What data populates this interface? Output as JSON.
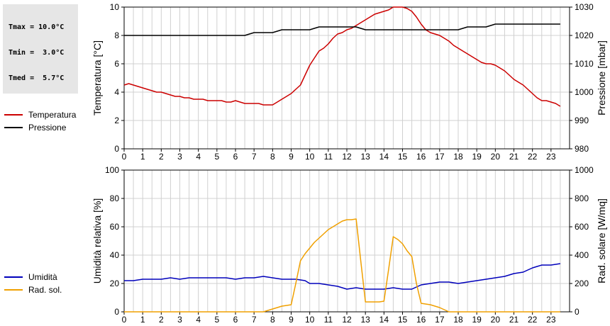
{
  "stats": {
    "tmax": "Tmax = 10.0°C",
    "tmin": "Tmin =  3.0°C",
    "tmed": "Tmed =  5.7°C"
  },
  "legend_top": [
    {
      "label": "Temperatura",
      "color": "#cc0000"
    },
    {
      "label": "Pressione",
      "color": "#000000"
    }
  ],
  "legend_bottom": [
    {
      "label": "Umidità",
      "color": "#0000bb"
    },
    {
      "label": "Rad. sol.",
      "color": "#f0a000"
    }
  ],
  "chart_data": [
    {
      "type": "line",
      "x": [
        0,
        0.25,
        0.5,
        0.75,
        1,
        1.25,
        1.5,
        1.75,
        2,
        2.25,
        2.5,
        2.75,
        3,
        3.25,
        3.5,
        3.75,
        4,
        4.25,
        4.5,
        4.75,
        5,
        5.25,
        5.5,
        5.75,
        6,
        6.25,
        6.5,
        6.75,
        7,
        7.25,
        7.5,
        7.75,
        8,
        8.25,
        8.5,
        8.75,
        9,
        9.25,
        9.5,
        9.75,
        10,
        10.25,
        10.5,
        10.75,
        11,
        11.25,
        11.5,
        11.75,
        12,
        12.25,
        12.5,
        12.75,
        13,
        13.25,
        13.5,
        13.75,
        14,
        14.25,
        14.5,
        14.75,
        15,
        15.25,
        15.5,
        15.75,
        16,
        16.25,
        16.5,
        16.75,
        17,
        17.25,
        17.5,
        17.75,
        18,
        18.25,
        18.5,
        18.75,
        19,
        19.25,
        19.5,
        19.75,
        20,
        20.25,
        20.5,
        20.75,
        21,
        21.25,
        21.5,
        21.75,
        22,
        22.25,
        22.5,
        22.75,
        23,
        23.25,
        23.5
      ],
      "series": [
        {
          "name": "Temperatura",
          "axis": "left",
          "values": [
            4.5,
            4.6,
            4.5,
            4.4,
            4.3,
            4.2,
            4.1,
            4.0,
            4.0,
            3.9,
            3.8,
            3.7,
            3.7,
            3.6,
            3.6,
            3.5,
            3.5,
            3.5,
            3.4,
            3.4,
            3.4,
            3.4,
            3.3,
            3.3,
            3.4,
            3.3,
            3.2,
            3.2,
            3.2,
            3.2,
            3.1,
            3.1,
            3.1,
            3.3,
            3.5,
            3.7,
            3.9,
            4.2,
            4.5,
            5.2,
            5.9,
            6.4,
            6.9,
            7.1,
            7.4,
            7.8,
            8.1,
            8.2,
            8.4,
            8.5,
            8.7,
            8.9,
            9.1,
            9.3,
            9.5,
            9.6,
            9.7,
            9.8,
            10.0,
            10.0,
            10.0,
            9.9,
            9.7,
            9.3,
            8.8,
            8.4,
            8.2,
            8.1,
            8.0,
            7.8,
            7.6,
            7.3,
            7.1,
            6.9,
            6.7,
            6.5,
            6.3,
            6.1,
            6.0,
            6.0,
            5.9,
            5.7,
            5.5,
            5.2,
            4.9,
            4.7,
            4.5,
            4.2,
            3.9,
            3.6,
            3.4,
            3.4,
            3.3,
            3.2,
            3.0
          ]
        },
        {
          "name": "Pressione",
          "axis": "right",
          "values": [
            1020,
            1020,
            1020,
            1020,
            1020,
            1020,
            1020,
            1020,
            1020,
            1020,
            1020,
            1020,
            1020,
            1020,
            1020,
            1020,
            1020,
            1020,
            1020,
            1020,
            1020,
            1020,
            1020,
            1020,
            1020,
            1020,
            1020,
            1020.5,
            1021,
            1021,
            1021,
            1021,
            1021,
            1021.5,
            1022,
            1022,
            1022,
            1022,
            1022,
            1022,
            1022,
            1022.5,
            1023,
            1023,
            1023,
            1023,
            1023,
            1023,
            1023,
            1023,
            1023,
            1022.5,
            1022,
            1022,
            1022,
            1022,
            1022,
            1022,
            1022,
            1022,
            1022,
            1022,
            1022,
            1022,
            1022,
            1022,
            1022,
            1022,
            1022,
            1022,
            1022,
            1022,
            1022,
            1022.5,
            1023,
            1023,
            1023,
            1023,
            1023,
            1023.5,
            1024,
            1024,
            1024,
            1024,
            1024,
            1024,
            1024,
            1024,
            1024,
            1024,
            1024,
            1024,
            1024,
            1024,
            1024
          ]
        }
      ],
      "xlim": [
        0,
        24
      ],
      "xticks": [
        0,
        1,
        2,
        3,
        4,
        5,
        6,
        7,
        8,
        9,
        10,
        11,
        12,
        13,
        14,
        15,
        16,
        17,
        18,
        19,
        20,
        21,
        22,
        23
      ],
      "ylabel": "Temperatura [°C]",
      "ylim": [
        0,
        10
      ],
      "yticks": [
        0,
        2,
        4,
        6,
        8,
        10
      ],
      "y2label": "Pressione [mbar]",
      "y2lim": [
        980,
        1030
      ],
      "y2ticks": [
        980,
        990,
        1000,
        1010,
        1020,
        1030
      ],
      "grid": true
    },
    {
      "type": "line",
      "x": [
        0,
        0.25,
        0.5,
        0.75,
        1,
        1.25,
        1.5,
        1.75,
        2,
        2.25,
        2.5,
        2.75,
        3,
        3.25,
        3.5,
        3.75,
        4,
        4.25,
        4.5,
        4.75,
        5,
        5.25,
        5.5,
        5.75,
        6,
        6.25,
        6.5,
        6.75,
        7,
        7.25,
        7.5,
        7.75,
        8,
        8.25,
        8.5,
        8.75,
        9,
        9.25,
        9.5,
        9.75,
        10,
        10.25,
        10.5,
        10.75,
        11,
        11.25,
        11.5,
        11.75,
        12,
        12.25,
        12.5,
        12.75,
        13,
        13.25,
        13.5,
        13.75,
        14,
        14.25,
        14.5,
        14.75,
        15,
        15.25,
        15.5,
        15.75,
        16,
        16.25,
        16.5,
        16.75,
        17,
        17.25,
        17.5,
        17.75,
        18,
        18.25,
        18.5,
        18.75,
        19,
        19.25,
        19.5,
        19.75,
        20,
        20.25,
        20.5,
        20.75,
        21,
        21.25,
        21.5,
        21.75,
        22,
        22.25,
        22.5,
        22.75,
        23,
        23.25,
        23.5
      ],
      "series": [
        {
          "name": "Umidità",
          "axis": "left",
          "values": [
            22,
            22,
            22,
            22.5,
            23,
            23,
            23,
            23,
            23,
            23.5,
            24,
            23.5,
            23,
            23.5,
            24,
            24,
            24,
            24,
            24,
            24,
            24,
            24,
            24,
            23.5,
            23,
            23.5,
            24,
            24,
            24,
            24.5,
            25,
            24.5,
            24,
            23.5,
            23,
            23,
            23,
            23,
            22.5,
            22,
            20,
            20,
            20,
            19.5,
            19,
            18.5,
            18,
            17,
            16,
            16.5,
            17,
            16.5,
            16,
            16,
            16,
            16,
            16,
            16.5,
            17,
            16.5,
            16,
            16,
            16,
            17.5,
            19,
            19.5,
            20,
            20.5,
            21,
            21,
            21,
            20.5,
            20,
            20.5,
            21,
            21.5,
            22,
            22.5,
            23,
            23.5,
            24,
            24.5,
            25,
            26,
            27,
            27.5,
            28,
            29.5,
            31,
            32,
            33,
            33,
            33,
            33.5,
            34
          ]
        },
        {
          "name": "Rad. sol.",
          "axis": "right",
          "values": [
            0,
            0,
            0,
            0,
            0,
            0,
            0,
            0,
            0,
            0,
            0,
            0,
            0,
            0,
            0,
            0,
            0,
            0,
            0,
            0,
            0,
            0,
            0,
            0,
            0,
            0,
            0,
            0,
            0,
            0,
            0,
            10,
            20,
            30,
            40,
            45,
            50,
            200,
            360,
            410,
            450,
            490,
            520,
            550,
            580,
            600,
            620,
            640,
            650,
            650,
            655,
            360,
            70,
            70,
            70,
            70,
            75,
            300,
            530,
            510,
            480,
            430,
            390,
            200,
            60,
            55,
            50,
            40,
            30,
            15,
            0,
            0,
            0,
            0,
            0,
            0,
            0,
            0,
            0,
            0,
            0,
            0,
            0,
            0,
            0,
            0,
            0,
            0,
            0,
            0,
            0,
            0,
            0,
            0,
            0
          ]
        }
      ],
      "xlim": [
        0,
        24
      ],
      "xticks": [
        0,
        1,
        2,
        3,
        4,
        5,
        6,
        7,
        8,
        9,
        10,
        11,
        12,
        13,
        14,
        15,
        16,
        17,
        18,
        19,
        20,
        21,
        22,
        23
      ],
      "ylabel": "Umidità relativa [%]",
      "ylim": [
        0,
        100
      ],
      "yticks": [
        0,
        20,
        40,
        60,
        80,
        100
      ],
      "y2label": "Rad. solare [W/mq]",
      "y2lim": [
        0,
        1000
      ],
      "y2ticks": [
        0,
        200,
        400,
        600,
        800,
        1000
      ],
      "grid": true
    }
  ]
}
